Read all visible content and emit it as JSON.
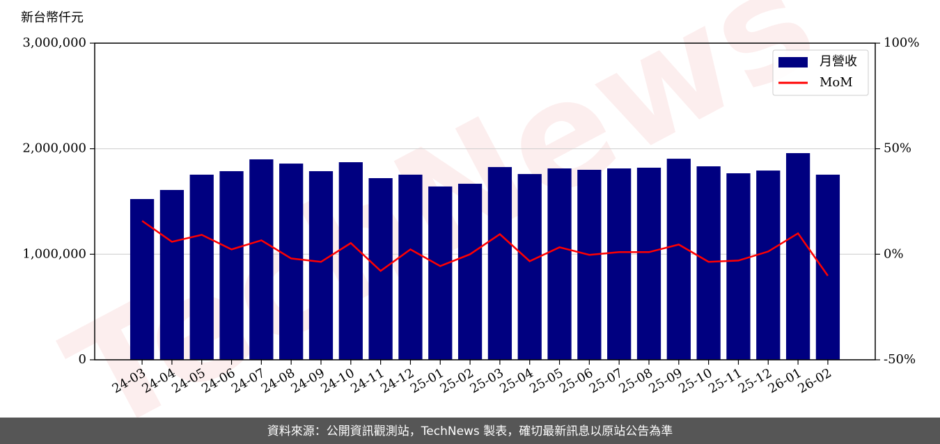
{
  "chart_data": {
    "type": "bar_line",
    "y_label": "新台幣仟元",
    "watermark": "TechNews",
    "footer": "資料來源：公開資訊觀測站，TechNews 製表，確切最新訊息以原站公告為準",
    "categories": [
      "24-03",
      "24-04",
      "24-05",
      "24-06",
      "24-07",
      "24-08",
      "24-09",
      "24-10",
      "24-11",
      "24-12",
      "25-01",
      "25-02",
      "25-03",
      "25-04",
      "25-05",
      "25-06",
      "25-07",
      "25-08",
      "25-09",
      "25-10",
      "25-11",
      "25-12",
      "26-01",
      "26-02"
    ],
    "series": [
      {
        "name": "月營收",
        "type": "bar",
        "color": "#000080",
        "values": [
          1523000,
          1609000,
          1754000,
          1787000,
          1899000,
          1859000,
          1787000,
          1872000,
          1721000,
          1754000,
          1642000,
          1668000,
          1826000,
          1760000,
          1813000,
          1800000,
          1813000,
          1820000,
          1905000,
          1833000,
          1767000,
          1793000,
          1958000,
          1754000
        ]
      },
      {
        "name": "MoM",
        "type": "line",
        "axis": "y2",
        "color": "#ff0000",
        "values": [
          15.8,
          5.9,
          9.2,
          2.3,
          6.6,
          -2.0,
          -3.6,
          5.3,
          -7.9,
          2.3,
          -5.6,
          0.0,
          9.5,
          -3.3,
          3.3,
          -0.3,
          1.0,
          1.0,
          4.6,
          -3.6,
          -3.0,
          1.3,
          9.9,
          -10.2
        ]
      }
    ],
    "ylim": [
      0,
      3000000
    ],
    "yticks": [
      0,
      {
        "value": 1000000,
        "label": "1,000,000"
      },
      {
        "value": 2000000,
        "label": "2,000,000"
      },
      {
        "value": 3000000,
        "label": "3,000,000"
      }
    ],
    "y2lim": [
      -50,
      100
    ],
    "y2ticks": [
      {
        "value": -50,
        "label": "-50%"
      },
      {
        "value": 0,
        "label": "0%"
      },
      {
        "value": 50,
        "label": "50%"
      },
      {
        "value": 100,
        "label": "100%"
      }
    ],
    "grid": true,
    "legend": "upper right"
  }
}
